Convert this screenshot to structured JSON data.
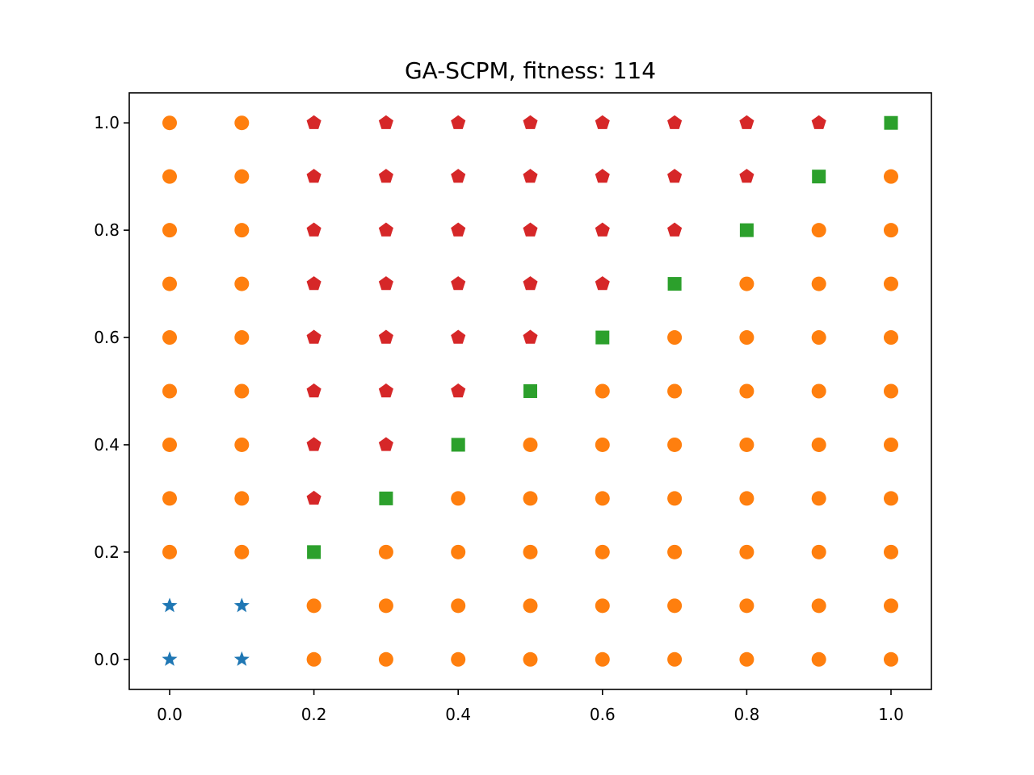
{
  "chart_data": {
    "type": "scatter",
    "title": "GA-SCPM, fitness: 114",
    "xlabel": "",
    "ylabel": "",
    "xlim": [
      -0.056,
      1.056
    ],
    "ylim": [
      -0.056,
      1.056
    ],
    "x_ticks": [
      "0.0",
      "0.2",
      "0.4",
      "0.6",
      "0.8",
      "1.0"
    ],
    "y_ticks": [
      "0.0",
      "0.2",
      "0.4",
      "0.6",
      "0.8",
      "1.0"
    ],
    "grid": false,
    "legend": "none",
    "series": [
      {
        "marker": "star",
        "color": "#1f77b4",
        "points": [
          [
            0.0,
            0.0
          ],
          [
            0.1,
            0.0
          ],
          [
            0.0,
            0.1
          ],
          [
            0.1,
            0.1
          ]
        ]
      },
      {
        "marker": "circle",
        "color": "#ff7f0e",
        "points": [
          [
            0.2,
            0.0
          ],
          [
            0.3,
            0.0
          ],
          [
            0.4,
            0.0
          ],
          [
            0.5,
            0.0
          ],
          [
            0.6,
            0.0
          ],
          [
            0.7,
            0.0
          ],
          [
            0.8,
            0.0
          ],
          [
            0.9,
            0.0
          ],
          [
            1.0,
            0.0
          ],
          [
            0.2,
            0.1
          ],
          [
            0.3,
            0.1
          ],
          [
            0.4,
            0.1
          ],
          [
            0.5,
            0.1
          ],
          [
            0.6,
            0.1
          ],
          [
            0.7,
            0.1
          ],
          [
            0.8,
            0.1
          ],
          [
            0.9,
            0.1
          ],
          [
            1.0,
            0.1
          ],
          [
            0.0,
            0.2
          ],
          [
            0.1,
            0.2
          ],
          [
            0.3,
            0.2
          ],
          [
            0.4,
            0.2
          ],
          [
            0.5,
            0.2
          ],
          [
            0.6,
            0.2
          ],
          [
            0.7,
            0.2
          ],
          [
            0.8,
            0.2
          ],
          [
            0.9,
            0.2
          ],
          [
            1.0,
            0.2
          ],
          [
            0.0,
            0.3
          ],
          [
            0.1,
            0.3
          ],
          [
            0.4,
            0.3
          ],
          [
            0.5,
            0.3
          ],
          [
            0.6,
            0.3
          ],
          [
            0.7,
            0.3
          ],
          [
            0.8,
            0.3
          ],
          [
            0.9,
            0.3
          ],
          [
            1.0,
            0.3
          ],
          [
            0.0,
            0.4
          ],
          [
            0.1,
            0.4
          ],
          [
            0.5,
            0.4
          ],
          [
            0.6,
            0.4
          ],
          [
            0.7,
            0.4
          ],
          [
            0.8,
            0.4
          ],
          [
            0.9,
            0.4
          ],
          [
            1.0,
            0.4
          ],
          [
            0.0,
            0.5
          ],
          [
            0.1,
            0.5
          ],
          [
            0.6,
            0.5
          ],
          [
            0.7,
            0.5
          ],
          [
            0.8,
            0.5
          ],
          [
            0.9,
            0.5
          ],
          [
            1.0,
            0.5
          ],
          [
            0.0,
            0.6
          ],
          [
            0.1,
            0.6
          ],
          [
            0.7,
            0.6
          ],
          [
            0.8,
            0.6
          ],
          [
            0.9,
            0.6
          ],
          [
            1.0,
            0.6
          ],
          [
            0.0,
            0.7
          ],
          [
            0.1,
            0.7
          ],
          [
            0.8,
            0.7
          ],
          [
            0.9,
            0.7
          ],
          [
            1.0,
            0.7
          ],
          [
            0.0,
            0.8
          ],
          [
            0.1,
            0.8
          ],
          [
            0.9,
            0.8
          ],
          [
            1.0,
            0.8
          ],
          [
            0.0,
            0.9
          ],
          [
            0.1,
            0.9
          ],
          [
            1.0,
            0.9
          ],
          [
            0.0,
            1.0
          ],
          [
            0.1,
            1.0
          ]
        ]
      },
      {
        "marker": "square",
        "color": "#2ca02c",
        "points": [
          [
            0.2,
            0.2
          ],
          [
            0.3,
            0.3
          ],
          [
            0.4,
            0.4
          ],
          [
            0.5,
            0.5
          ],
          [
            0.6,
            0.6
          ],
          [
            0.7,
            0.7
          ],
          [
            0.8,
            0.8
          ],
          [
            0.9,
            0.9
          ],
          [
            1.0,
            1.0
          ]
        ]
      },
      {
        "marker": "pentagon",
        "color": "#d62728",
        "points": [
          [
            0.2,
            0.3
          ],
          [
            0.2,
            0.4
          ],
          [
            0.3,
            0.4
          ],
          [
            0.2,
            0.5
          ],
          [
            0.3,
            0.5
          ],
          [
            0.4,
            0.5
          ],
          [
            0.2,
            0.6
          ],
          [
            0.3,
            0.6
          ],
          [
            0.4,
            0.6
          ],
          [
            0.5,
            0.6
          ],
          [
            0.2,
            0.7
          ],
          [
            0.3,
            0.7
          ],
          [
            0.4,
            0.7
          ],
          [
            0.5,
            0.7
          ],
          [
            0.6,
            0.7
          ],
          [
            0.2,
            0.8
          ],
          [
            0.3,
            0.8
          ],
          [
            0.4,
            0.8
          ],
          [
            0.5,
            0.8
          ],
          [
            0.6,
            0.8
          ],
          [
            0.7,
            0.8
          ],
          [
            0.2,
            0.9
          ],
          [
            0.3,
            0.9
          ],
          [
            0.4,
            0.9
          ],
          [
            0.5,
            0.9
          ],
          [
            0.6,
            0.9
          ],
          [
            0.7,
            0.9
          ],
          [
            0.8,
            0.9
          ],
          [
            0.2,
            1.0
          ],
          [
            0.3,
            1.0
          ],
          [
            0.4,
            1.0
          ],
          [
            0.5,
            1.0
          ],
          [
            0.6,
            1.0
          ],
          [
            0.7,
            1.0
          ],
          [
            0.8,
            1.0
          ],
          [
            0.9,
            1.0
          ]
        ]
      }
    ]
  }
}
